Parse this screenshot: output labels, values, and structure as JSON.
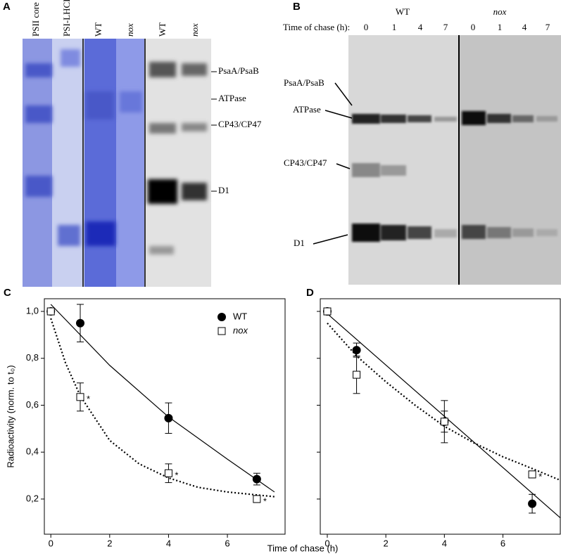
{
  "panel_a": {
    "label": "A",
    "lanes": [
      "PSII core",
      "PSI-LHCI",
      "WT",
      "nox",
      "WT",
      "nox"
    ],
    "bands": [
      "PsaA/PsaB",
      "ATPase",
      "CP43/CP47",
      "D1"
    ]
  },
  "panel_b": {
    "label": "B",
    "groups": [
      "WT",
      "nox"
    ],
    "time_label": "Time of chase (h):",
    "times": [
      "0",
      "1",
      "4",
      "7",
      "0",
      "1",
      "4",
      "7"
    ],
    "bands": [
      "PsaA/PsaB",
      "ATPase",
      "CP43/CP47",
      "D1"
    ]
  },
  "chart_data": [
    {
      "type": "scatter",
      "panel_label": "C",
      "xlabel": "Time of chase (h)",
      "ylabel": "Radioactivity (norm. to t₀)",
      "xlim": [
        -0.22,
        7.96
      ],
      "ylim": [
        0.05,
        1.054
      ],
      "xticks": [
        0,
        2,
        4,
        6
      ],
      "yticks": [
        {
          "value": 0.2,
          "label": "0,2"
        },
        {
          "value": 0.4,
          "label": "0,4"
        },
        {
          "value": 0.6,
          "label": "0,6"
        },
        {
          "value": 0.8,
          "label": "0,8"
        },
        {
          "value": 1.0,
          "label": "1,0"
        }
      ],
      "legend": "top-right",
      "series": [
        {
          "name": "WT",
          "marker": "filled-circle",
          "color": "#000000",
          "x": [
            0,
            1,
            4,
            7
          ],
          "values": [
            1.0,
            0.95,
            0.545,
            0.285
          ],
          "errors": [
            0,
            0.08,
            0.065,
            0.025
          ]
        },
        {
          "name": "nox",
          "marker": "open-square",
          "color": "#000000",
          "x": [
            0,
            1,
            4,
            7
          ],
          "values": [
            1.0,
            0.635,
            0.31,
            0.2
          ],
          "errors": [
            0,
            0.06,
            0.04,
            0.015
          ]
        }
      ],
      "fits": [
        {
          "style": "solid",
          "x": [
            0,
            2,
            4,
            6,
            7.6
          ],
          "values": [
            1.03,
            0.77,
            0.55,
            0.37,
            0.23
          ]
        },
        {
          "style": "dotted",
          "x": [
            0,
            0.5,
            1,
            2,
            3,
            4,
            5,
            6,
            7.6
          ],
          "values": [
            0.97,
            0.78,
            0.64,
            0.45,
            0.35,
            0.29,
            0.25,
            0.23,
            0.21
          ]
        }
      ],
      "annotations": [
        {
          "text": "*",
          "x": 1,
          "y": 0.635
        },
        {
          "text": "*",
          "x": 4,
          "y": 0.31
        },
        {
          "text": "*",
          "x": 7,
          "y": 0.2
        }
      ]
    },
    {
      "type": "scatter",
      "panel_label": "D",
      "xlim": [
        -0.24,
        7.96
      ],
      "ylim": [
        0.05,
        1.054
      ],
      "xticks": [
        0,
        2,
        4,
        6
      ],
      "yticks": [
        0.2,
        0.4,
        0.6,
        0.8,
        1.0
      ],
      "series": [
        {
          "marker": "filled-circle",
          "color": "#000000",
          "x": [
            0,
            1,
            4,
            7
          ],
          "values": [
            1.0,
            0.835,
            0.53,
            0.18
          ],
          "errors": [
            0,
            0.03,
            0.045,
            0.04
          ]
        },
        {
          "marker": "open-square",
          "color": "#000000",
          "x": [
            0,
            1,
            4,
            7
          ],
          "values": [
            1.0,
            0.73,
            0.53,
            0.305
          ],
          "errors": [
            0,
            0.08,
            0.09,
            0.015
          ]
        }
      ],
      "fits": [
        {
          "style": "solid",
          "x": [
            0,
            7.96
          ],
          "values": [
            0.99,
            0.12
          ]
        },
        {
          "style": "dotted",
          "x": [
            0,
            1,
            2,
            3,
            4,
            5,
            6,
            7,
            7.96
          ],
          "values": [
            0.95,
            0.81,
            0.7,
            0.6,
            0.51,
            0.44,
            0.38,
            0.33,
            0.28
          ]
        }
      ],
      "annotations": [
        {
          "text": "*",
          "x": 7,
          "y": 0.305
        }
      ]
    }
  ]
}
